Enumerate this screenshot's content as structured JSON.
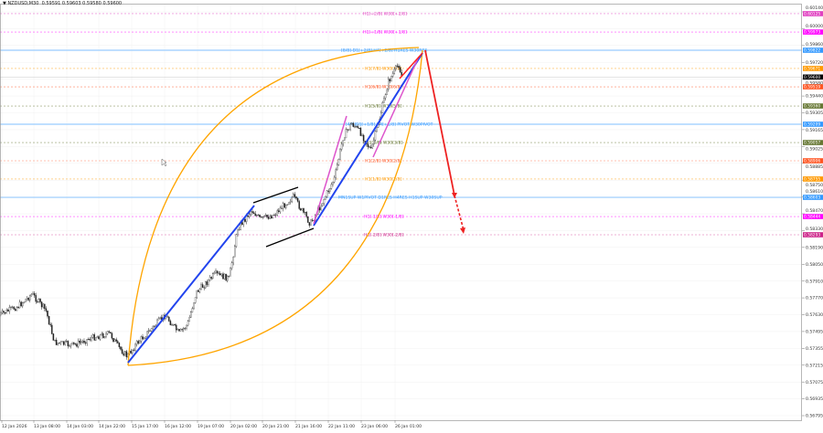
{
  "header": {
    "symbol": "NZDUSD,M30",
    "open": "0.59591",
    "high": "0.59603",
    "low": "0.59580",
    "close": "0.59600"
  },
  "chart_data": {
    "type": "candlestick",
    "title": "NZDUSD,M30",
    "ylim": [
      0.56795,
      0.6014
    ],
    "y_ticks": [
      "0.60140",
      "0.60000",
      "0.59860",
      "0.59720",
      "0.59580",
      "0.59440",
      "0.59305",
      "0.59165",
      "0.59025",
      "0.58885",
      "0.58750",
      "0.58610",
      "0.58470",
      "0.58330",
      "0.58190",
      "0.58050",
      "0.57910",
      "0.57770",
      "0.57630",
      "0.57495",
      "0.57355",
      "0.57215",
      "0.57075",
      "0.56935",
      "0.56795"
    ],
    "x_ticks": [
      "12 Jan 2026",
      "13 Jan 08:00",
      "14 Jan 03:00",
      "14 Jan 22:00",
      "15 Jan 17:00",
      "16 Jan 12:00",
      "19 Jan 07:00",
      "20 Jan 02:00",
      "20 Jan 21:00",
      "21 Jan 16:00",
      "22 Jan 11:00",
      "23 Jan 06:00",
      "26 Jan 01:00"
    ],
    "grid": true,
    "series": [
      {
        "points": [
          [
            "12 Jan 12:00",
            0.57627
          ],
          [
            "12 Jan 23:00",
            0.57702
          ],
          [
            "13 Jan 07:00",
            0.57801
          ],
          [
            "13 Jan 15:00",
            0.57665
          ],
          [
            "13 Jan 20:00",
            0.574
          ],
          [
            "14 Jan 07:00",
            0.57377
          ],
          [
            "14 Jan 17:00",
            0.57438
          ],
          [
            "15 Jan 04:00",
            0.57475
          ],
          [
            "15 Jan 09:00",
            0.57362
          ],
          [
            "15 Jan 14:00",
            0.57286
          ],
          [
            "15 Jan 20:00",
            0.574
          ],
          [
            "16 Jan 04:00",
            0.57513
          ],
          [
            "16 Jan 12:00",
            0.57627
          ],
          [
            "16 Jan 20:00",
            0.57475
          ],
          [
            "19 Jan 01:00",
            0.57551
          ],
          [
            "19 Jan 06:00",
            0.57816
          ],
          [
            "19 Jan 17:00",
            0.57967
          ],
          [
            "20 Jan 01:00",
            0.5793
          ],
          [
            "20 Jan 06:00",
            0.58346
          ],
          [
            "20 Jan 14:00",
            0.58497
          ],
          [
            "20 Jan 19:00",
            0.58422
          ],
          [
            "21 Jan 03:00",
            0.58459
          ],
          [
            "21 Jan 14:00",
            0.58611
          ],
          [
            "21 Jan 19:00",
            0.58497
          ],
          [
            "22 Jan 00:00",
            0.58384
          ],
          [
            "22 Jan 06:00",
            0.58535
          ],
          [
            "22 Jan 14:00",
            0.58762
          ],
          [
            "22 Jan 19:00",
            0.59103
          ],
          [
            "23 Jan 00:00",
            0.59216
          ],
          [
            "23 Jan 05:00",
            0.59141
          ],
          [
            "23 Jan 11:00",
            0.58989
          ],
          [
            "23 Jan 16:00",
            0.59254
          ],
          [
            "23 Jan 21:00",
            0.59557
          ],
          [
            "26 Jan 03:00",
            0.59708
          ],
          [
            "26 Jan 05:00",
            0.596
          ]
        ]
      }
    ],
    "levels": [
      {
        "label": "H1[+2/8] W30[+2/8]",
        "price": 0.60125,
        "tag": "0.60125",
        "color": "#e040c0"
      },
      {
        "label": "H1[+1/8] W30[+1/8]",
        "price": 0.59973,
        "tag": "0.59973",
        "color": "#ff00ff"
      },
      {
        "label": "[8/8]-D1[+2/8] H4[+2/8] H1RES W30RES",
        "price": 0.59822,
        "tag": "0.59822",
        "color": "#3399ff"
      },
      {
        "label": "H1[7/8] W30[7/8]",
        "price": 0.59671,
        "tag": "0.59671",
        "color": "#ff9900"
      },
      {
        "label": "H1[6/8] W30[6/8]",
        "price": 0.59519,
        "tag": "0.59519",
        "color": "#ff5522"
      },
      {
        "label": "H1[5/8] W30[5/8]",
        "price": 0.5936,
        "tag": "0.59360",
        "color": "#667733"
      },
      {
        "label": "[4/8]D1[+1/8] H4[+1/8] PIVOT W30PIVOT",
        "price": 0.59209,
        "tag": "0.59209",
        "color": "#3399ff"
      },
      {
        "label": "H1[3/8] W30[3/8]",
        "price": 0.59057,
        "tag": "0.59057",
        "color": "#667733"
      },
      {
        "label": "H1[2/8] W30[2/8]",
        "price": 0.58906,
        "tag": "0.58906",
        "color": "#ff5522"
      },
      {
        "label": "H1[1/8] W30[1/8]",
        "price": 0.58755,
        "tag": "0.58755",
        "color": "#ff9900"
      },
      {
        "label": "MN1SUP W1PIVOT D1RES H4RES H1SUP W30SUP",
        "price": 0.58603,
        "tag": "0.58603",
        "color": "#3399ff"
      },
      {
        "label": "H1[-1/8] W30[-1/8]",
        "price": 0.58444,
        "tag": "0.58444",
        "color": "#ff00ff"
      },
      {
        "label": "H1[-2/8] W30[-2/8]",
        "price": 0.58293,
        "tag": "0.58293",
        "color": "#cc2288"
      }
    ],
    "current_price": {
      "tag": "0.59600",
      "color": "#000000"
    }
  }
}
